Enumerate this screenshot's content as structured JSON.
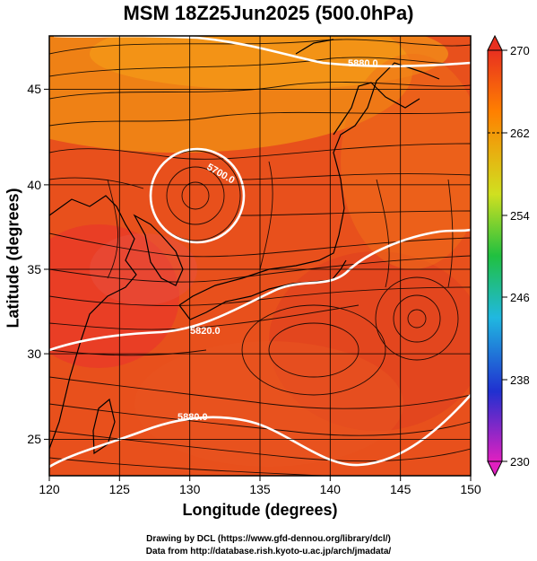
{
  "title": "MSM 18Z25Jun2025 (500.0hPa)",
  "xlabel": "Longitude (degrees)",
  "ylabel": "Latitude  (degrees)",
  "credit_line1": "Drawing by DCL (https://www.gfd-dennou.org/library/dcl/)",
  "credit_line2": "Data from http://database.rish.kyoto-u.ac.jp/arch/jmadata/",
  "map": {
    "lon_range": [
      120,
      150
    ],
    "lat_range": [
      22.4,
      47.6
    ],
    "lon_ticks": [
      "120",
      "125",
      "130",
      "135",
      "140",
      "145",
      "150"
    ],
    "lat_ticks": [
      "25",
      "30",
      "35",
      "40",
      "45"
    ],
    "grid_lines": true,
    "contour_labels": [
      "5880.0",
      "5700.0",
      "5820.0",
      "5880.0"
    ]
  },
  "colorbar": {
    "ticks": [
      "270",
      "262",
      "254",
      "246",
      "238",
      "230"
    ],
    "min": 230,
    "max": 270,
    "colors": [
      "#e020c0",
      "#2030d0",
      "#20b8e0",
      "#20c040",
      "#d0e020",
      "#ff8000",
      "#e83020"
    ]
  }
}
